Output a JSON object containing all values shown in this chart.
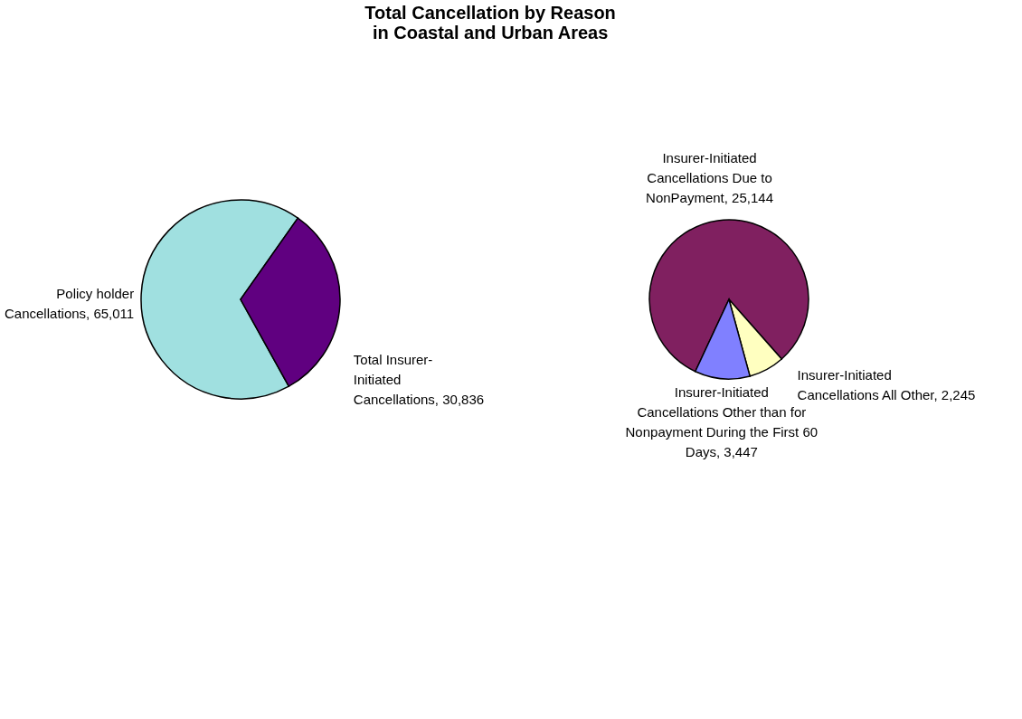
{
  "chart_data": [
    {
      "type": "pie",
      "title": [
        "Total Cancellation by Reason",
        "in Coastal and Urban Areas"
      ],
      "categories": [
        "Policy holder Cancellations",
        "Total Insurer-Initiated Cancellations"
      ],
      "values": [
        65011,
        30836
      ],
      "value_labels": [
        "65,011",
        "30,836"
      ],
      "colors": [
        "#a0e0e0",
        "#600080"
      ],
      "legend": false
    },
    {
      "type": "pie",
      "categories": [
        "Insurer-Initiated Cancellations Due to NonPayment",
        "Insurer-Initiated Cancellations All Other",
        "Insurer-Initiated Cancellations Other than for Nonpayment During the First 60 Days"
      ],
      "values": [
        25144,
        2245,
        3447
      ],
      "value_labels": [
        "25,144",
        "2,245",
        "3,447"
      ],
      "colors": [
        "#802060",
        "#ffffc0",
        "#8080ff"
      ],
      "legend": false
    }
  ]
}
